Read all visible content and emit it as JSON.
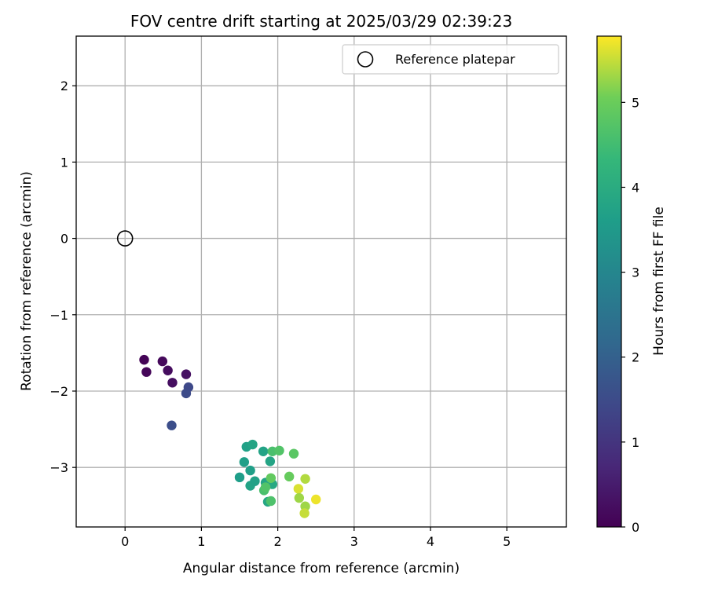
{
  "chart_data": {
    "type": "scatter",
    "title": "FOV centre drift starting at 2025/03/29 02:39:23",
    "xlabel": "Angular distance from reference (arcmin)",
    "ylabel": "Rotation from reference (arcmin)",
    "xlim": [
      -0.64,
      5.78
    ],
    "ylim": [
      -3.78,
      2.65
    ],
    "xticks": [
      0,
      1,
      2,
      3,
      4,
      5
    ],
    "yticks": [
      2,
      1,
      0,
      -1,
      -2,
      -3
    ],
    "xtick_labels": [
      "0",
      "1",
      "2",
      "3",
      "4",
      "5"
    ],
    "ytick_labels": [
      "2",
      "1",
      "0",
      "−1",
      "−2",
      "−3"
    ],
    "grid": true,
    "legend": {
      "position": "top-right",
      "entries": [
        "Reference platepar"
      ]
    },
    "reference": {
      "x": 0,
      "y": 0,
      "label": "Reference platepar"
    },
    "colorbar": {
      "label": "Hours from first FF file",
      "range": [
        0,
        5.78
      ],
      "ticks": [
        0,
        1,
        2,
        3,
        4,
        5
      ],
      "tick_labels": [
        "0",
        "1",
        "2",
        "3",
        "4",
        "5"
      ],
      "colormap": "viridis"
    },
    "points": [
      {
        "x": 0.25,
        "y": -1.59,
        "c": 0.05
      },
      {
        "x": 0.28,
        "y": -1.75,
        "c": 0.1
      },
      {
        "x": 0.49,
        "y": -1.61,
        "c": 0.15
      },
      {
        "x": 0.56,
        "y": -1.73,
        "c": 0.2
      },
      {
        "x": 0.62,
        "y": -1.89,
        "c": 0.25
      },
      {
        "x": 0.8,
        "y": -1.78,
        "c": 0.3
      },
      {
        "x": 0.83,
        "y": -1.95,
        "c": 1.45
      },
      {
        "x": 0.8,
        "y": -2.03,
        "c": 1.5
      },
      {
        "x": 0.61,
        "y": -2.45,
        "c": 1.55
      },
      {
        "x": 1.5,
        "y": -3.13,
        "c": 3.6
      },
      {
        "x": 1.56,
        "y": -2.93,
        "c": 3.65
      },
      {
        "x": 1.59,
        "y": -2.73,
        "c": 3.7
      },
      {
        "x": 1.64,
        "y": -3.04,
        "c": 3.65
      },
      {
        "x": 1.64,
        "y": -3.24,
        "c": 3.75
      },
      {
        "x": 1.67,
        "y": -2.7,
        "c": 3.8
      },
      {
        "x": 1.7,
        "y": -3.18,
        "c": 3.7
      },
      {
        "x": 1.81,
        "y": -2.79,
        "c": 3.75
      },
      {
        "x": 1.84,
        "y": -3.2,
        "c": 3.8
      },
      {
        "x": 1.87,
        "y": -3.45,
        "c": 3.85
      },
      {
        "x": 1.9,
        "y": -2.92,
        "c": 3.8
      },
      {
        "x": 1.93,
        "y": -3.22,
        "c": 3.9
      },
      {
        "x": 1.93,
        "y": -2.79,
        "c": 4.6
      },
      {
        "x": 1.82,
        "y": -3.3,
        "c": 4.6
      },
      {
        "x": 1.84,
        "y": -3.26,
        "c": 4.7
      },
      {
        "x": 1.91,
        "y": -3.44,
        "c": 4.65
      },
      {
        "x": 1.91,
        "y": -3.14,
        "c": 4.9
      },
      {
        "x": 2.02,
        "y": -2.78,
        "c": 4.7
      },
      {
        "x": 2.15,
        "y": -3.12,
        "c": 4.95
      },
      {
        "x": 2.21,
        "y": -2.82,
        "c": 4.8
      },
      {
        "x": 2.27,
        "y": -3.28,
        "c": 5.6
      },
      {
        "x": 2.28,
        "y": -3.4,
        "c": 5.3
      },
      {
        "x": 2.36,
        "y": -3.15,
        "c": 5.4
      },
      {
        "x": 2.36,
        "y": -3.51,
        "c": 5.3
      },
      {
        "x": 2.35,
        "y": -3.6,
        "c": 5.5
      },
      {
        "x": 2.5,
        "y": -3.42,
        "c": 5.7
      }
    ]
  }
}
